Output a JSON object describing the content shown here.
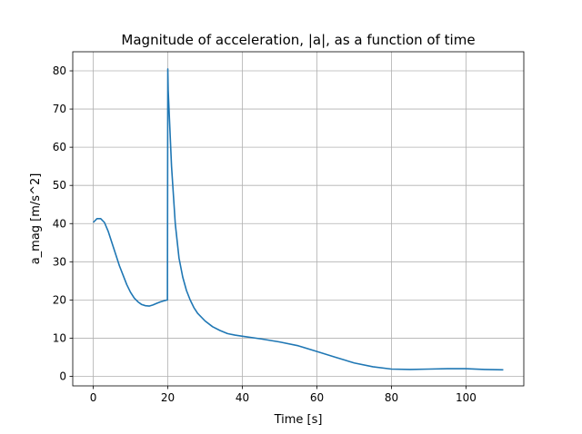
{
  "chart_data": {
    "type": "line",
    "title": "Magnitude of acceleration, |a|, as a function of time",
    "xlabel": "Time [s]",
    "ylabel": "a_mag [m/s^2]",
    "xlim": [
      -5.5,
      115.5
    ],
    "ylim": [
      -2.5,
      85.0
    ],
    "xticks": [
      0,
      20,
      40,
      60,
      80,
      100
    ],
    "yticks": [
      0,
      10,
      20,
      30,
      40,
      50,
      60,
      70,
      80
    ],
    "grid": true,
    "series": [
      {
        "color": "#1f77b4",
        "x": [
          0,
          1,
          2,
          3,
          4,
          5,
          6,
          7,
          8,
          9,
          10,
          11,
          12,
          13,
          14,
          15,
          16,
          17,
          18,
          19,
          19.9,
          20.0,
          20.1,
          21,
          22,
          23,
          24,
          25,
          26,
          27,
          28,
          30,
          32,
          34,
          36,
          38,
          40,
          45,
          50,
          55,
          60,
          65,
          70,
          75,
          80,
          85,
          90,
          95,
          100,
          105,
          110
        ],
        "y": [
          40.3,
          41.3,
          41.3,
          40.3,
          38.0,
          35.0,
          32.0,
          29.0,
          26.5,
          24.0,
          22.0,
          20.5,
          19.5,
          18.8,
          18.5,
          18.4,
          18.7,
          19.1,
          19.5,
          19.8,
          20.0,
          80.5,
          75.0,
          55.0,
          40.0,
          31.0,
          26.0,
          22.5,
          20.0,
          18.0,
          16.5,
          14.5,
          13.0,
          12.0,
          11.2,
          10.8,
          10.5,
          9.8,
          9.0,
          8.0,
          6.5,
          5.0,
          3.5,
          2.5,
          1.9,
          1.8,
          1.9,
          2.0,
          2.0,
          1.8,
          1.7
        ]
      }
    ]
  }
}
